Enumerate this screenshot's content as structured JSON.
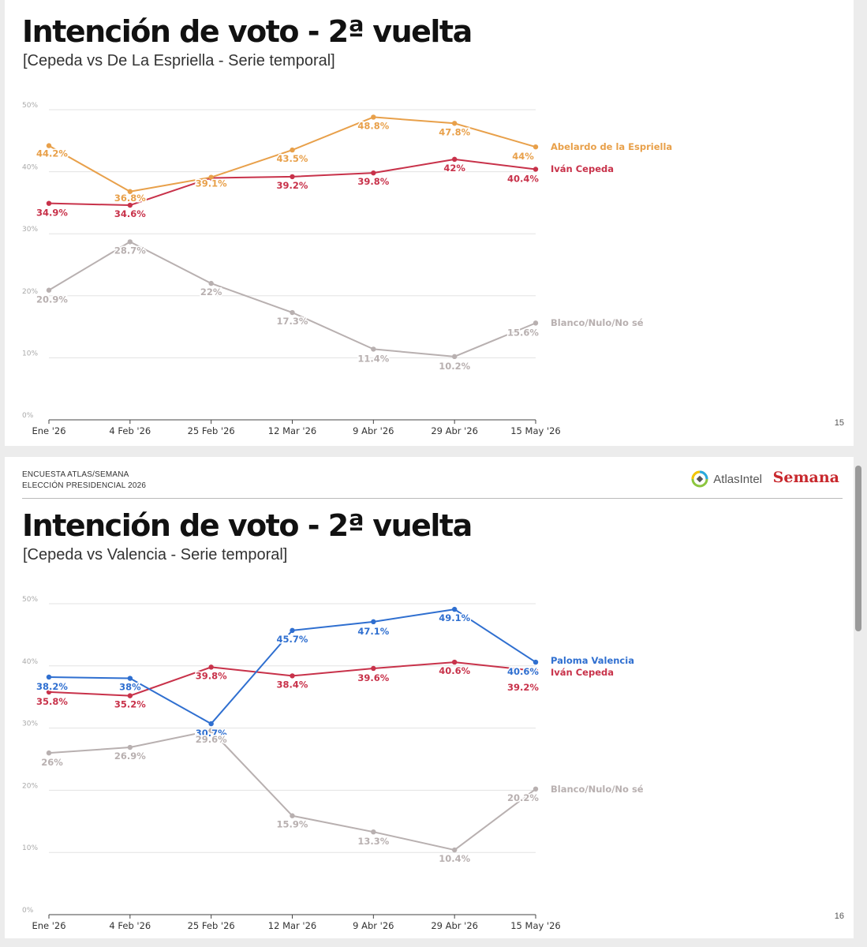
{
  "slides": [
    {
      "title": "Intención de voto - 2ª vuelta",
      "subtitle": "[Cepeda vs De La Espriella - Serie temporal]",
      "page_number": "15"
    },
    {
      "header": {
        "line1": "ENCUESTA ATLAS/SEMANA",
        "line2": "ELECCIÓN PRESIDENCIAL 2026",
        "atlas_logo_text": "AtlasIntel",
        "semana_logo_text": "Semana"
      },
      "title": "Intención de voto - 2ª vuelta",
      "subtitle": "[Cepeda vs Valencia - Serie temporal]",
      "page_number": "16"
    }
  ],
  "chart_data": [
    {
      "type": "line",
      "x": [
        "Ene '26",
        "4 Feb '26",
        "25 Feb '26",
        "12 Mar '26",
        "9 Abr '26",
        "29 Abr '26",
        "15 May '26"
      ],
      "ylim": [
        0,
        50
      ],
      "yticks": [
        "0%",
        "10%",
        "20%",
        "30%",
        "40%",
        "50%"
      ],
      "grid": true,
      "legend": "end-of-line labels, right",
      "series": [
        {
          "name": "Abelardo de la Espriella",
          "color": "#e8a04a",
          "values": [
            44.2,
            36.8,
            39.1,
            43.5,
            48.8,
            47.8,
            44
          ],
          "labels": [
            "44.2%",
            "36.8%",
            "39.1%",
            "43.5%",
            "48.8%",
            "47.8%",
            "44%"
          ]
        },
        {
          "name": "Iván Cepeda",
          "color": "#c8324a",
          "values": [
            34.9,
            34.6,
            39,
            39.2,
            39.8,
            42,
            40.4
          ],
          "labels": [
            "34.9%",
            "34.6%",
            "",
            "39.2%",
            "39.8%",
            "42%",
            "40.4%"
          ]
        },
        {
          "name": "Blanco/Nulo/No sé",
          "color": "#b8b0b0",
          "values": [
            20.9,
            28.7,
            22,
            17.3,
            11.4,
            10.2,
            15.6
          ],
          "labels": [
            "20.9%",
            "28.7%",
            "22%",
            "17.3%",
            "11.4%",
            "10.2%",
            "15.6%"
          ]
        }
      ]
    },
    {
      "type": "line",
      "x": [
        "Ene '26",
        "4 Feb '26",
        "25 Feb '26",
        "12 Mar '26",
        "9 Abr '26",
        "29 Abr '26",
        "15 May '26"
      ],
      "ylim": [
        0,
        50
      ],
      "yticks": [
        "0%",
        "10%",
        "20%",
        "30%",
        "40%",
        "50%"
      ],
      "grid": true,
      "legend": "end-of-line labels, right",
      "series": [
        {
          "name": "Paloma Valencia",
          "color": "#2f6fd0",
          "values": [
            38.2,
            38,
            30.7,
            45.7,
            47.1,
            49.1,
            40.6
          ],
          "labels": [
            "38.2%",
            "38%",
            "30.7%",
            "45.7%",
            "47.1%",
            "49.1%",
            "40.6%"
          ]
        },
        {
          "name": "Iván Cepeda",
          "color": "#c8324a",
          "values": [
            35.8,
            35.2,
            39.8,
            38.4,
            39.6,
            40.6,
            39.2
          ],
          "labels": [
            "35.8%",
            "35.2%",
            "39.8%",
            "38.4%",
            "39.6%",
            "40.6%",
            "39.2%"
          ]
        },
        {
          "name": "Blanco/Nulo/No sé",
          "color": "#b8b0b0",
          "values": [
            26,
            26.9,
            29.6,
            15.9,
            13.3,
            10.4,
            20.2
          ],
          "labels": [
            "26%",
            "26.9%",
            "29.6%",
            "15.9%",
            "13.3%",
            "10.4%",
            "20.2%"
          ]
        }
      ]
    }
  ]
}
